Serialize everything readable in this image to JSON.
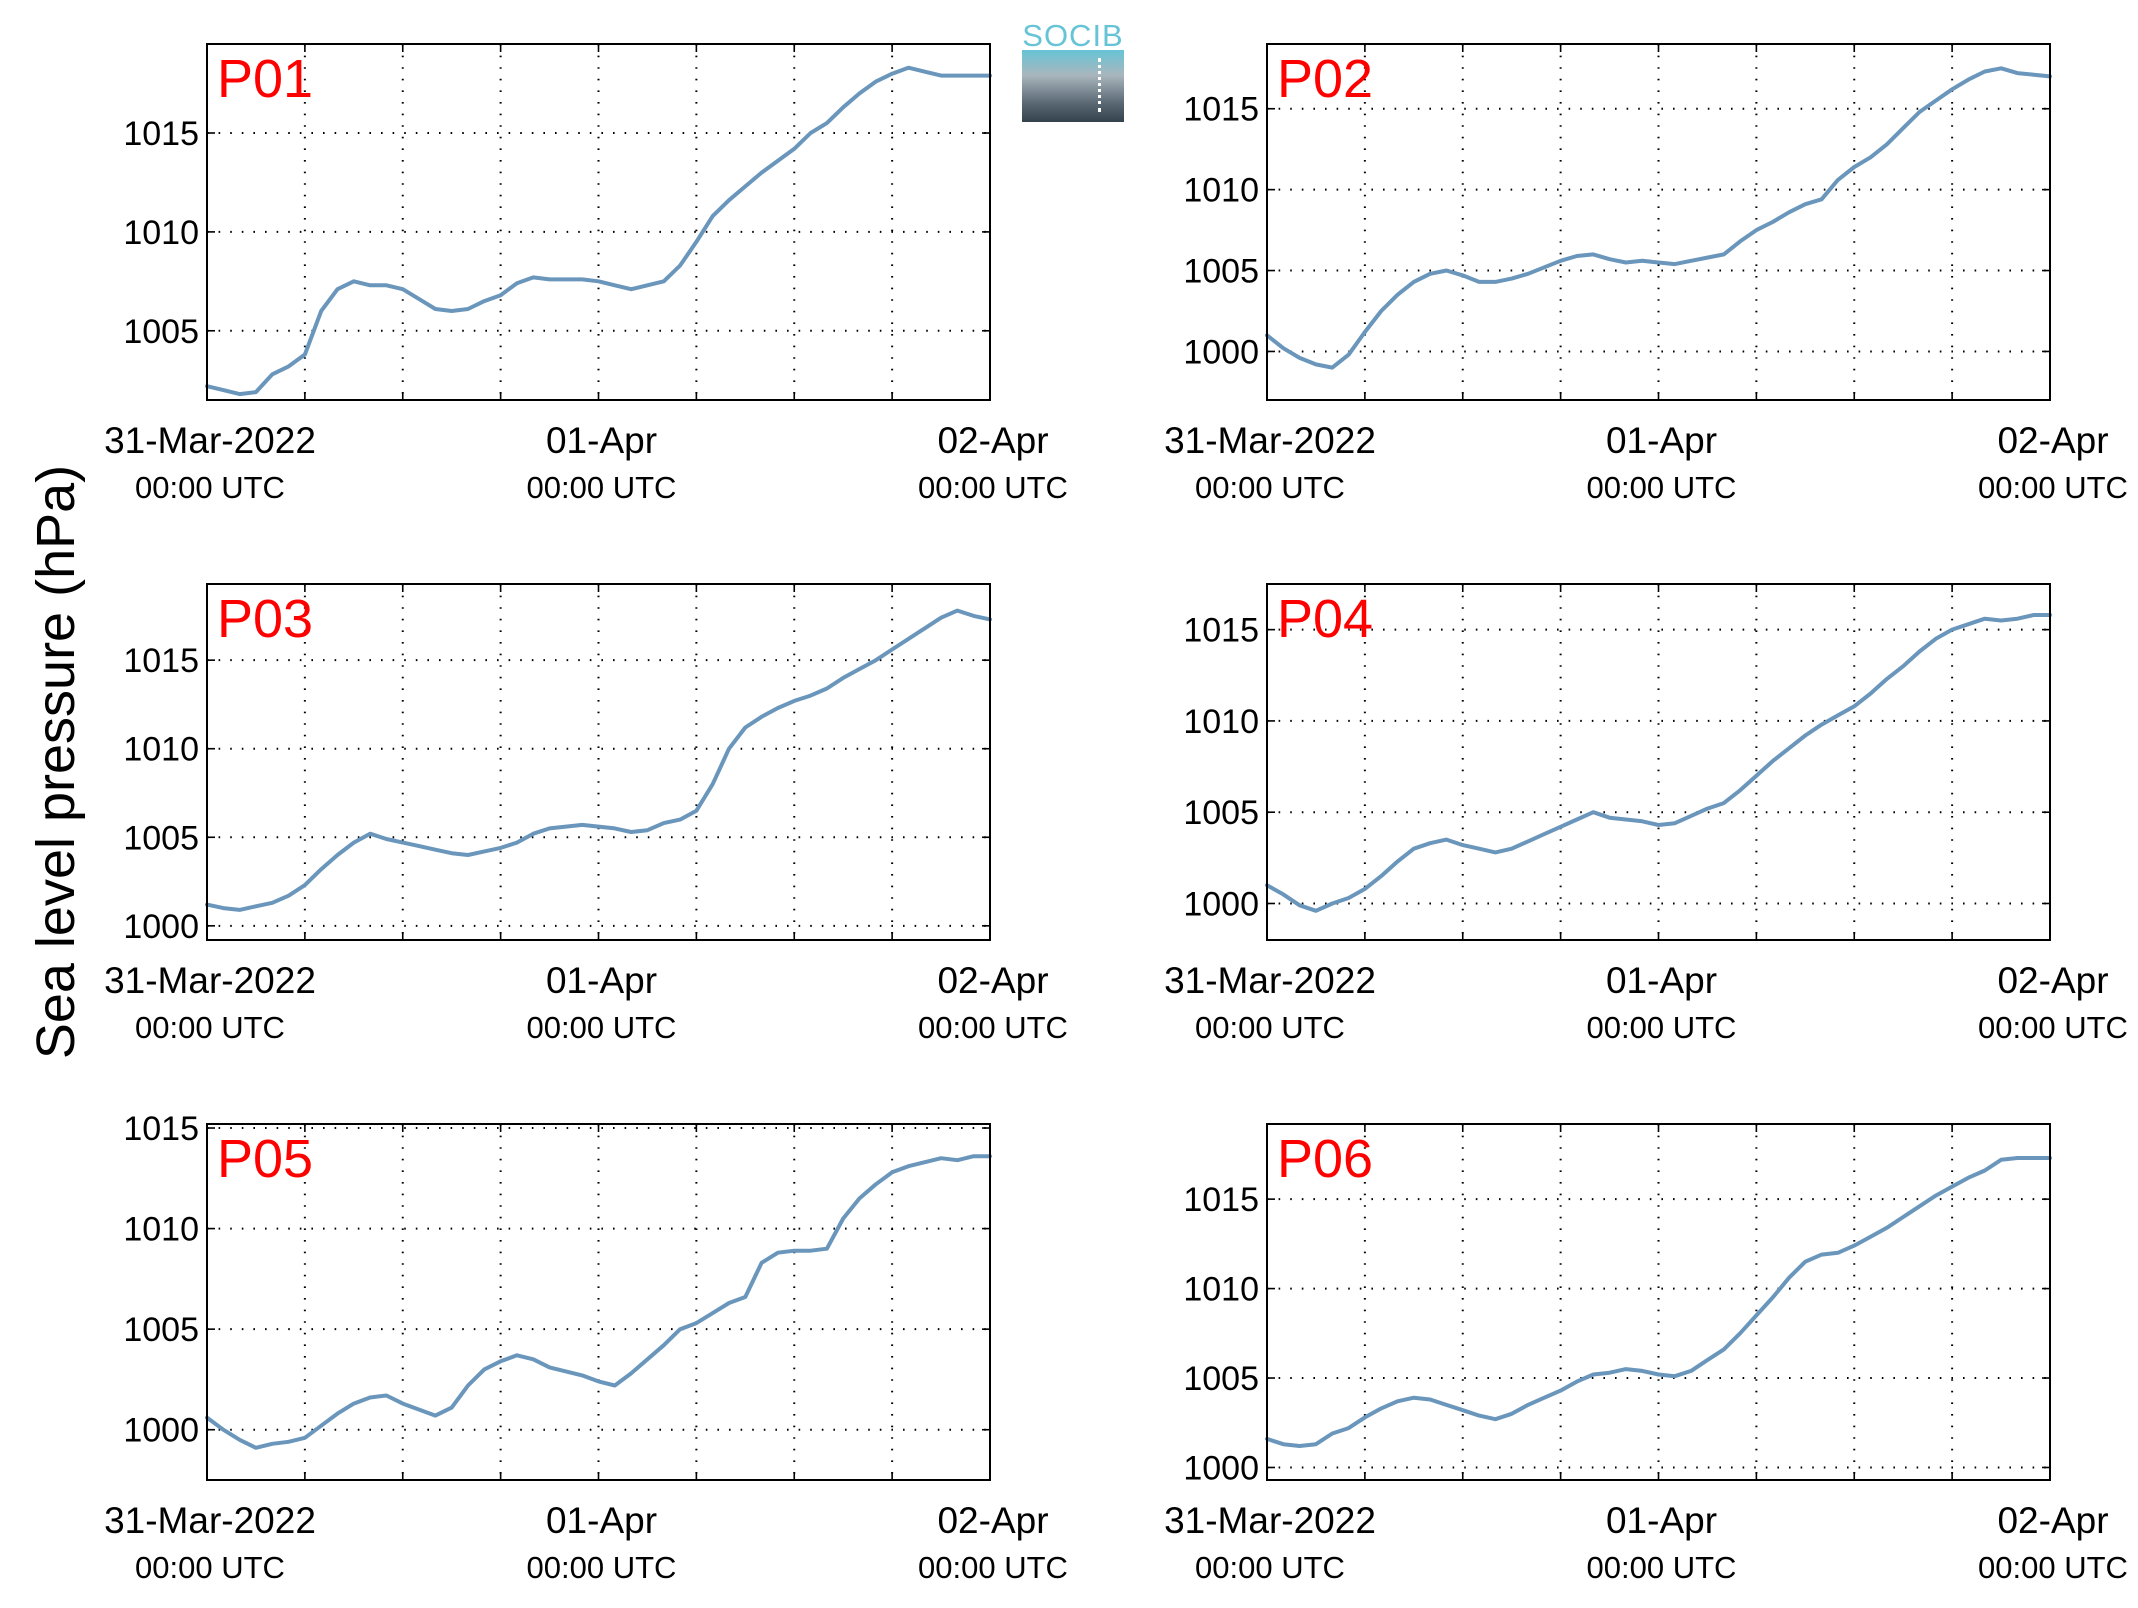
{
  "ylabel": "Sea level pressure (hPa)",
  "logo": {
    "text": "SOCIB"
  },
  "colors": {
    "line": "#6a96bc",
    "panel_label": "#ff0000",
    "axis": "#000000"
  },
  "x_ticks": [
    {
      "line1": "31-Mar-2022",
      "line2": "00:00 UTC"
    },
    {
      "line1": "01-Apr",
      "line2": "00:00 UTC"
    },
    {
      "line1": "02-Apr",
      "line2": "00:00 UTC"
    }
  ],
  "chart_data": [
    {
      "type": "line",
      "label": "P01",
      "x_unit": "hours since 31-Mar-2022 00:00 UTC",
      "xlim": [
        0,
        48
      ],
      "ylim": [
        1001.5,
        1019.5
      ],
      "yticks": [
        1005,
        1010,
        1015
      ],
      "grid": true,
      "x": [
        0,
        1,
        2,
        3,
        4,
        5,
        6,
        7,
        8,
        9,
        10,
        11,
        12,
        13,
        14,
        15,
        16,
        17,
        18,
        19,
        20,
        21,
        22,
        23,
        24,
        25,
        26,
        27,
        28,
        29,
        30,
        31,
        32,
        33,
        34,
        35,
        36,
        37,
        38,
        39,
        40,
        41,
        42,
        43,
        44,
        45,
        46,
        47,
        48
      ],
      "y": [
        1002.2,
        1002.0,
        1001.8,
        1001.9,
        1002.8,
        1003.2,
        1003.8,
        1006.0,
        1007.1,
        1007.5,
        1007.3,
        1007.3,
        1007.1,
        1006.6,
        1006.1,
        1006.0,
        1006.1,
        1006.5,
        1006.8,
        1007.4,
        1007.7,
        1007.6,
        1007.6,
        1007.6,
        1007.5,
        1007.3,
        1007.1,
        1007.3,
        1007.5,
        1008.3,
        1009.5,
        1010.8,
        1011.6,
        1012.3,
        1013.0,
        1013.6,
        1014.2,
        1015.0,
        1015.5,
        1016.3,
        1017.0,
        1017.6,
        1018.0,
        1018.3,
        1018.1,
        1017.9,
        1017.9,
        1017.9,
        1017.9
      ]
    },
    {
      "type": "line",
      "label": "P02",
      "x_unit": "hours since 31-Mar-2022 00:00 UTC",
      "xlim": [
        0,
        48
      ],
      "ylim": [
        997,
        1019
      ],
      "yticks": [
        1000,
        1005,
        1010,
        1015
      ],
      "grid": true,
      "x": [
        0,
        1,
        2,
        3,
        4,
        5,
        6,
        7,
        8,
        9,
        10,
        11,
        12,
        13,
        14,
        15,
        16,
        17,
        18,
        19,
        20,
        21,
        22,
        23,
        24,
        25,
        26,
        27,
        28,
        29,
        30,
        31,
        32,
        33,
        34,
        35,
        36,
        37,
        38,
        39,
        40,
        41,
        42,
        43,
        44,
        45,
        46,
        47,
        48
      ],
      "y": [
        1001.0,
        1000.2,
        999.6,
        999.2,
        999.0,
        999.8,
        1001.2,
        1002.5,
        1003.5,
        1004.3,
        1004.8,
        1005.0,
        1004.7,
        1004.3,
        1004.3,
        1004.5,
        1004.8,
        1005.2,
        1005.6,
        1005.9,
        1006.0,
        1005.7,
        1005.5,
        1005.6,
        1005.5,
        1005.4,
        1005.6,
        1005.8,
        1006.0,
        1006.8,
        1007.5,
        1008.0,
        1008.6,
        1009.1,
        1009.4,
        1010.6,
        1011.4,
        1012.0,
        1012.8,
        1013.8,
        1014.8,
        1015.5,
        1016.2,
        1016.8,
        1017.3,
        1017.5,
        1017.2,
        1017.1,
        1017.0
      ]
    },
    {
      "type": "line",
      "label": "P03",
      "x_unit": "hours since 31-Mar-2022 00:00 UTC",
      "xlim": [
        0,
        48
      ],
      "ylim": [
        999.2,
        1019.3
      ],
      "yticks": [
        1000,
        1005,
        1010,
        1015
      ],
      "grid": true,
      "x": [
        0,
        1,
        2,
        3,
        4,
        5,
        6,
        7,
        8,
        9,
        10,
        11,
        12,
        13,
        14,
        15,
        16,
        17,
        18,
        19,
        20,
        21,
        22,
        23,
        24,
        25,
        26,
        27,
        28,
        29,
        30,
        31,
        32,
        33,
        34,
        35,
        36,
        37,
        38,
        39,
        40,
        41,
        42,
        43,
        44,
        45,
        46,
        47,
        48
      ],
      "y": [
        1001.2,
        1001.0,
        1000.9,
        1001.1,
        1001.3,
        1001.7,
        1002.3,
        1003.2,
        1004.0,
        1004.7,
        1005.2,
        1004.9,
        1004.7,
        1004.5,
        1004.3,
        1004.1,
        1004.0,
        1004.2,
        1004.4,
        1004.7,
        1005.2,
        1005.5,
        1005.6,
        1005.7,
        1005.6,
        1005.5,
        1005.3,
        1005.4,
        1005.8,
        1006.0,
        1006.5,
        1008.0,
        1010.0,
        1011.2,
        1011.8,
        1012.3,
        1012.7,
        1013.0,
        1013.4,
        1014.0,
        1014.5,
        1015.0,
        1015.6,
        1016.2,
        1016.8,
        1017.4,
        1017.8,
        1017.5,
        1017.3
      ]
    },
    {
      "type": "line",
      "label": "P04",
      "x_unit": "hours since 31-Mar-2022 00:00 UTC",
      "xlim": [
        0,
        48
      ],
      "ylim": [
        998,
        1017.5
      ],
      "yticks": [
        1000,
        1005,
        1010,
        1015
      ],
      "grid": true,
      "x": [
        0,
        1,
        2,
        3,
        4,
        5,
        6,
        7,
        8,
        9,
        10,
        11,
        12,
        13,
        14,
        15,
        16,
        17,
        18,
        19,
        20,
        21,
        22,
        23,
        24,
        25,
        26,
        27,
        28,
        29,
        30,
        31,
        32,
        33,
        34,
        35,
        36,
        37,
        38,
        39,
        40,
        41,
        42,
        43,
        44,
        45,
        46,
        47,
        48
      ],
      "y": [
        1001.0,
        1000.5,
        999.9,
        999.6,
        1000.0,
        1000.3,
        1000.8,
        1001.5,
        1002.3,
        1003.0,
        1003.3,
        1003.5,
        1003.2,
        1003.0,
        1002.8,
        1003.0,
        1003.4,
        1003.8,
        1004.2,
        1004.6,
        1005.0,
        1004.7,
        1004.6,
        1004.5,
        1004.3,
        1004.4,
        1004.8,
        1005.2,
        1005.5,
        1006.2,
        1007.0,
        1007.8,
        1008.5,
        1009.2,
        1009.8,
        1010.3,
        1010.8,
        1011.5,
        1012.3,
        1013.0,
        1013.8,
        1014.5,
        1015.0,
        1015.3,
        1015.6,
        1015.5,
        1015.6,
        1015.8,
        1015.8
      ]
    },
    {
      "type": "line",
      "label": "P05",
      "x_unit": "hours since 31-Mar-2022 00:00 UTC",
      "xlim": [
        0,
        48
      ],
      "ylim": [
        997.5,
        1015.2
      ],
      "yticks": [
        1000,
        1005,
        1010,
        1015
      ],
      "grid": true,
      "x": [
        0,
        1,
        2,
        3,
        4,
        5,
        6,
        7,
        8,
        9,
        10,
        11,
        12,
        13,
        14,
        15,
        16,
        17,
        18,
        19,
        20,
        21,
        22,
        23,
        24,
        25,
        26,
        27,
        28,
        29,
        30,
        31,
        32,
        33,
        34,
        35,
        36,
        37,
        38,
        39,
        40,
        41,
        42,
        43,
        44,
        45,
        46,
        47,
        48
      ],
      "y": [
        1000.6,
        1000.0,
        999.5,
        999.1,
        999.3,
        999.4,
        999.6,
        1000.2,
        1000.8,
        1001.3,
        1001.6,
        1001.7,
        1001.3,
        1001.0,
        1000.7,
        1001.1,
        1002.2,
        1003.0,
        1003.4,
        1003.7,
        1003.5,
        1003.1,
        1002.9,
        1002.7,
        1002.4,
        1002.2,
        1002.8,
        1003.5,
        1004.2,
        1005.0,
        1005.3,
        1005.8,
        1006.3,
        1006.6,
        1008.3,
        1008.8,
        1008.9,
        1008.9,
        1009.0,
        1010.5,
        1011.5,
        1012.2,
        1012.8,
        1013.1,
        1013.3,
        1013.5,
        1013.4,
        1013.6,
        1013.6
      ]
    },
    {
      "type": "line",
      "label": "P06",
      "x_unit": "hours since 31-Mar-2022 00:00 UTC",
      "xlim": [
        0,
        48
      ],
      "ylim": [
        999.3,
        1019.2
      ],
      "yticks": [
        1000,
        1005,
        1010,
        1015
      ],
      "grid": true,
      "x": [
        0,
        1,
        2,
        3,
        4,
        5,
        6,
        7,
        8,
        9,
        10,
        11,
        12,
        13,
        14,
        15,
        16,
        17,
        18,
        19,
        20,
        21,
        22,
        23,
        24,
        25,
        26,
        27,
        28,
        29,
        30,
        31,
        32,
        33,
        34,
        35,
        36,
        37,
        38,
        39,
        40,
        41,
        42,
        43,
        44,
        45,
        46,
        47,
        48
      ],
      "y": [
        1001.6,
        1001.3,
        1001.2,
        1001.3,
        1001.9,
        1002.2,
        1002.8,
        1003.3,
        1003.7,
        1003.9,
        1003.8,
        1003.5,
        1003.2,
        1002.9,
        1002.7,
        1003.0,
        1003.5,
        1003.9,
        1004.3,
        1004.8,
        1005.2,
        1005.3,
        1005.5,
        1005.4,
        1005.2,
        1005.1,
        1005.4,
        1006.0,
        1006.6,
        1007.5,
        1008.5,
        1009.5,
        1010.6,
        1011.5,
        1011.9,
        1012.0,
        1012.4,
        1012.9,
        1013.4,
        1014.0,
        1014.6,
        1015.2,
        1015.7,
        1016.2,
        1016.6,
        1017.2,
        1017.3,
        1017.3,
        1017.3
      ]
    }
  ]
}
